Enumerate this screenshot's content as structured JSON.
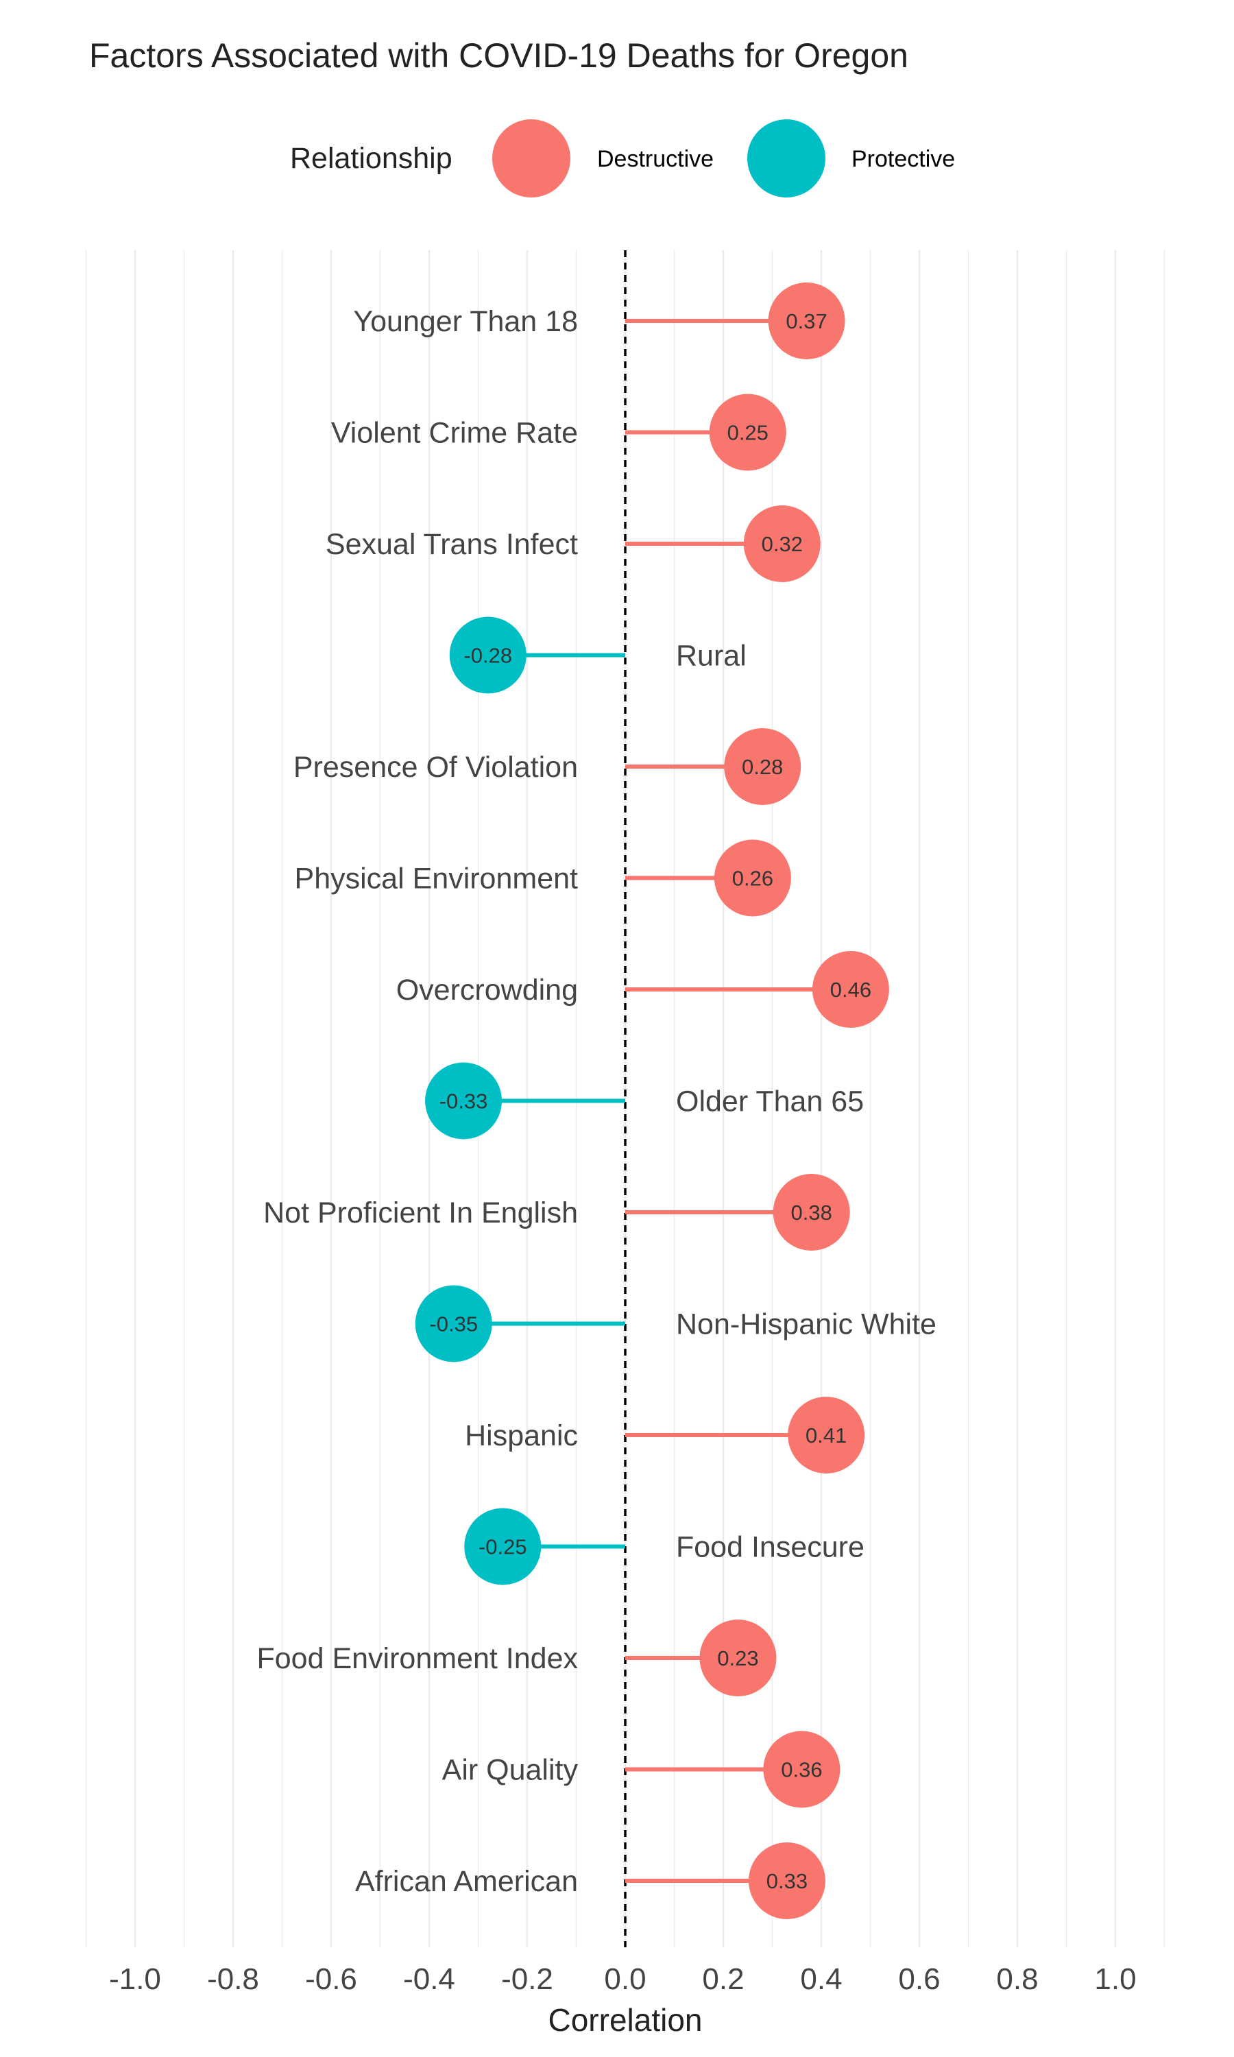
{
  "chart_data": {
    "type": "lollipop",
    "title": "Factors Associated with COVID-19 Deaths for Oregon",
    "xlabel": "Correlation",
    "ylabel": "",
    "xlim": [
      -1.1,
      1.1
    ],
    "x_ticks": [
      -1.0,
      -0.8,
      -0.6,
      -0.4,
      -0.2,
      0.0,
      0.2,
      0.4,
      0.6,
      0.8,
      1.0
    ],
    "x_tick_labels": [
      "-1.0",
      "-0.8",
      "-0.6",
      "-0.4",
      "-0.2",
      "0.0",
      "0.2",
      "0.4",
      "0.6",
      "0.8",
      "1.0"
    ],
    "grid": true,
    "legend": {
      "title": "Relationship",
      "placement": "top",
      "entries": [
        {
          "name": "Destructive",
          "color": "#F8766D"
        },
        {
          "name": "Protective",
          "color": "#00BFC4"
        }
      ]
    },
    "points": [
      {
        "category": "Younger Than 18",
        "value": 0.37,
        "label": "0.37",
        "relationship": "Destructive"
      },
      {
        "category": "Violent Crime Rate",
        "value": 0.25,
        "label": "0.25",
        "relationship": "Destructive"
      },
      {
        "category": "Sexual Trans Infect",
        "value": 0.32,
        "label": "0.32",
        "relationship": "Destructive"
      },
      {
        "category": "Rural",
        "value": -0.28,
        "label": "-0.28",
        "relationship": "Protective"
      },
      {
        "category": "Presence Of Violation",
        "value": 0.28,
        "label": "0.28",
        "relationship": "Destructive"
      },
      {
        "category": "Physical Environment",
        "value": 0.26,
        "label": "0.26",
        "relationship": "Destructive"
      },
      {
        "category": "Overcrowding",
        "value": 0.46,
        "label": "0.46",
        "relationship": "Destructive"
      },
      {
        "category": "Older Than 65",
        "value": -0.33,
        "label": "-0.33",
        "relationship": "Protective"
      },
      {
        "category": "Not Proficient In English",
        "value": 0.38,
        "label": "0.38",
        "relationship": "Destructive"
      },
      {
        "category": "Non-Hispanic White",
        "value": -0.35,
        "label": "-0.35",
        "relationship": "Protective"
      },
      {
        "category": "Hispanic",
        "value": 0.41,
        "label": "0.41",
        "relationship": "Destructive"
      },
      {
        "category": "Food Insecure",
        "value": -0.25,
        "label": "-0.25",
        "relationship": "Protective"
      },
      {
        "category": "Food Environment Index",
        "value": 0.23,
        "label": "0.23",
        "relationship": "Destructive"
      },
      {
        "category": "Air Quality",
        "value": 0.36,
        "label": "0.36",
        "relationship": "Destructive"
      },
      {
        "category": "African American",
        "value": 0.33,
        "label": "0.33",
        "relationship": "Destructive"
      }
    ]
  }
}
